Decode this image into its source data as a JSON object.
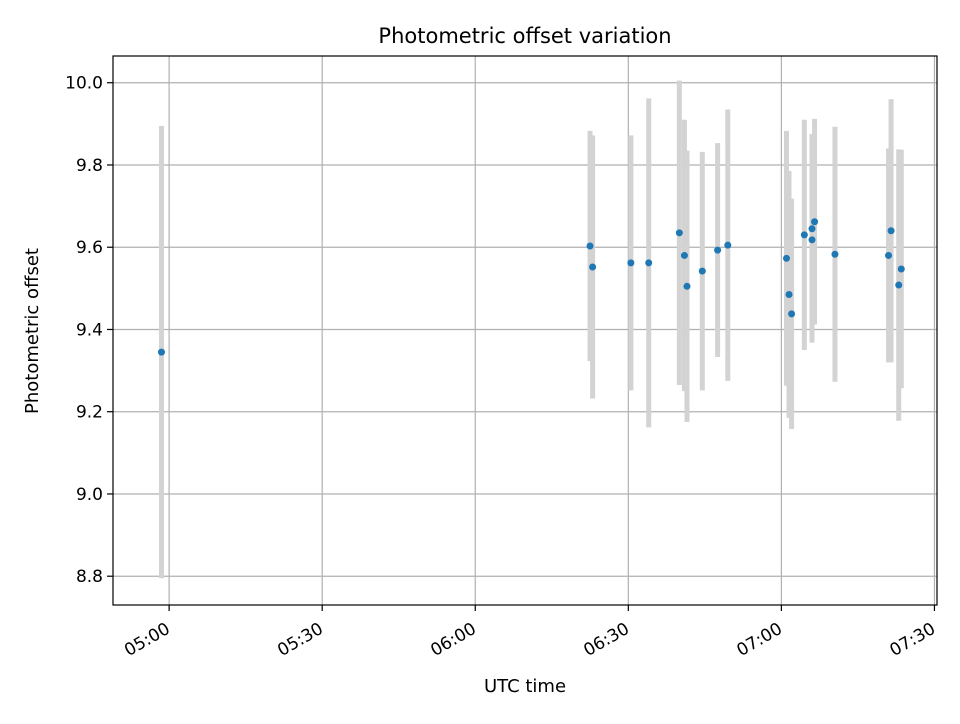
{
  "chart_data": {
    "type": "scatter",
    "title": "Photometric offset variation",
    "xlabel": "UTC time",
    "ylabel": "Photometric offset",
    "x_ticks": [
      "05:00",
      "05:30",
      "06:00",
      "06:30",
      "07:00",
      "07:30"
    ],
    "y_ticks": [
      "8.8",
      "9.0",
      "9.2",
      "9.4",
      "9.6",
      "9.8",
      "10.0"
    ],
    "xlim": [
      "04:49",
      "07:30.5"
    ],
    "ylim": [
      8.73,
      10.065
    ],
    "grid": true,
    "legend": "none",
    "colors": {
      "points": "#1f77b4",
      "errorbars": "#d3d3d3",
      "grid": "#b0b0b0"
    },
    "points": [
      {
        "time": "04:58.5",
        "y": 9.345,
        "yerr": 0.55
      },
      {
        "time": "06:22.5",
        "y": 9.603,
        "yerr": 0.28
      },
      {
        "time": "06:23.0",
        "y": 9.552,
        "yerr": 0.32
      },
      {
        "time": "06:30.5",
        "y": 9.562,
        "yerr": 0.31
      },
      {
        "time": "06:34.0",
        "y": 9.562,
        "yerr": 0.4
      },
      {
        "time": "06:40.0",
        "y": 9.635,
        "yerr": 0.37
      },
      {
        "time": "06:41.0",
        "y": 9.58,
        "yerr": 0.33
      },
      {
        "time": "06:41.5",
        "y": 9.505,
        "yerr": 0.33
      },
      {
        "time": "06:44.5",
        "y": 9.542,
        "yerr": 0.29
      },
      {
        "time": "06:47.5",
        "y": 9.593,
        "yerr": 0.26
      },
      {
        "time": "06:49.5",
        "y": 9.605,
        "yerr": 0.33
      },
      {
        "time": "07:01.0",
        "y": 9.573,
        "yerr": 0.31
      },
      {
        "time": "07:01.5",
        "y": 9.485,
        "yerr": 0.3
      },
      {
        "time": "07:02.0",
        "y": 9.438,
        "yerr": 0.28
      },
      {
        "time": "07:04.5",
        "y": 9.63,
        "yerr": 0.28
      },
      {
        "time": "07:06.0",
        "y": 9.645,
        "yerr": 0.23
      },
      {
        "time": "07:06.0",
        "y": 9.618,
        "yerr": 0.25
      },
      {
        "time": "07:06.5",
        "y": 9.662,
        "yerr": 0.25
      },
      {
        "time": "07:10.5",
        "y": 9.583,
        "yerr": 0.31
      },
      {
        "time": "07:21.0",
        "y": 9.58,
        "yerr": 0.26
      },
      {
        "time": "07:21.5",
        "y": 9.64,
        "yerr": 0.32
      },
      {
        "time": "07:23.0",
        "y": 9.508,
        "yerr": 0.33
      },
      {
        "time": "07:23.5",
        "y": 9.547,
        "yerr": 0.29
      }
    ]
  }
}
